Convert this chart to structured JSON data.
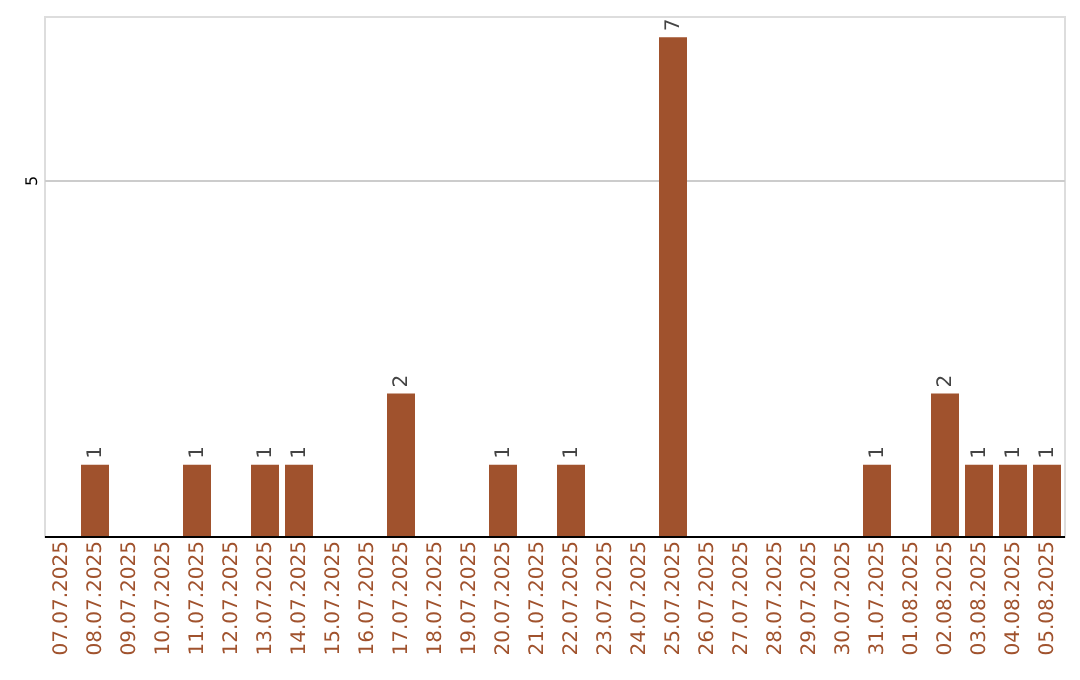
{
  "chart_data": {
    "type": "bar",
    "categories": [
      "07.07.2025",
      "08.07.2025",
      "09.07.2025",
      "10.07.2025",
      "11.07.2025",
      "12.07.2025",
      "13.07.2025",
      "14.07.2025",
      "15.07.2025",
      "16.07.2025",
      "17.07.2025",
      "18.07.2025",
      "19.07.2025",
      "20.07.2025",
      "21.07.2025",
      "22.07.2025",
      "23.07.2025",
      "24.07.2025",
      "25.07.2025",
      "26.07.2025",
      "27.07.2025",
      "28.07.2025",
      "29.07.2025",
      "30.07.2025",
      "31.07.2025",
      "01.08.2025",
      "02.08.2025",
      "03.08.2025",
      "04.08.2025",
      "05.08.2025"
    ],
    "values": [
      0,
      1,
      0,
      0,
      1,
      0,
      1,
      1,
      0,
      0,
      2,
      0,
      0,
      1,
      0,
      1,
      0,
      0,
      7,
      0,
      0,
      0,
      0,
      0,
      1,
      0,
      2,
      1,
      1,
      1
    ],
    "value_labels": [
      null,
      "1",
      null,
      null,
      "1",
      null,
      "1",
      "1",
      null,
      null,
      "2",
      null,
      null,
      "1",
      null,
      "1",
      null,
      null,
      "7",
      null,
      null,
      null,
      null,
      null,
      "1",
      null,
      "2",
      "1",
      "1",
      "1"
    ],
    "color": "#a0522d",
    "ylim": [
      0,
      7.3
    ],
    "yticks": [
      5
    ],
    "grid": "y"
  }
}
